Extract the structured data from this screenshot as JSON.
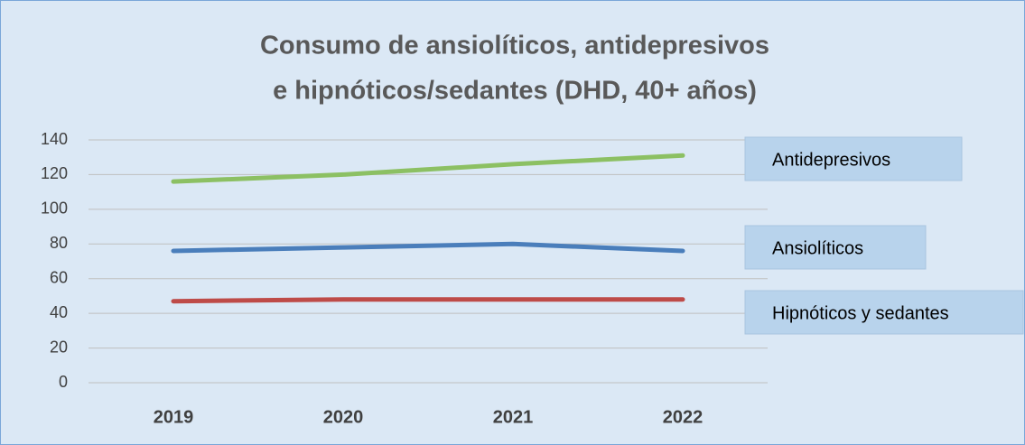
{
  "chart_data": {
    "type": "line",
    "title": [
      "Consumo de ansiolíticos, antidepresivos",
      "e hipnóticos/sedantes (DHD, 40+ años)"
    ],
    "categories": [
      "2019",
      "2020",
      "2021",
      "2022"
    ],
    "series": [
      {
        "name": "Antidepresivos",
        "color": "#8cc063",
        "values": [
          116,
          120,
          126,
          131
        ]
      },
      {
        "name": "Ansiolíticos",
        "color": "#4a7ebb",
        "values": [
          76,
          78,
          80,
          76
        ]
      },
      {
        "name": "Hipnóticos y sedantes",
        "color": "#be4b48",
        "values": [
          47,
          48,
          48,
          48
        ]
      }
    ],
    "ylim": [
      0,
      140
    ],
    "yticks": [
      0,
      20,
      40,
      60,
      80,
      100,
      120,
      140
    ],
    "grid": true
  }
}
